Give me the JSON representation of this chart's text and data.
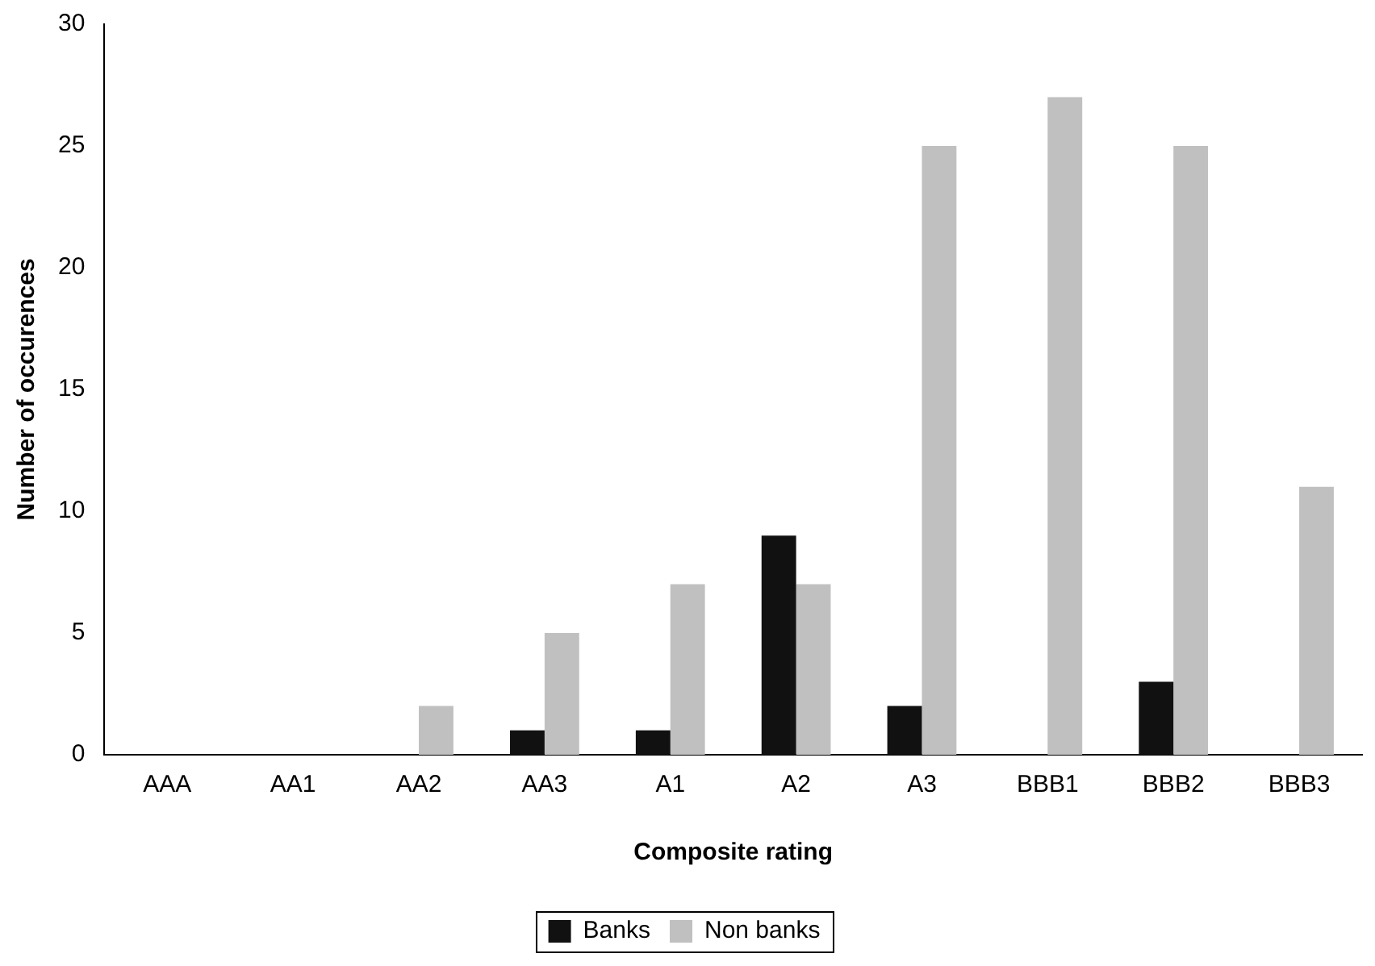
{
  "chart_data": {
    "type": "bar",
    "xlabel": "Composite rating",
    "ylabel": "Number of occurences",
    "categories": [
      "AAA",
      "AA1",
      "AA2",
      "AA3",
      "A1",
      "A2",
      "A3",
      "BBB1",
      "BBB2",
      "BBB3"
    ],
    "series": [
      {
        "name": "Banks",
        "color": "#111111",
        "values": [
          0,
          0,
          0,
          1,
          1,
          9,
          2,
          0,
          3,
          0
        ]
      },
      {
        "name": "Non banks",
        "color": "#c0c0c0",
        "values": [
          0,
          0,
          2,
          5,
          7,
          7,
          25,
          27,
          25,
          11
        ]
      }
    ],
    "ylim": [
      0,
      30
    ],
    "yticks": [
      0,
      5,
      10,
      15,
      20,
      25,
      30
    ],
    "grid": false,
    "legend": "bottom"
  }
}
